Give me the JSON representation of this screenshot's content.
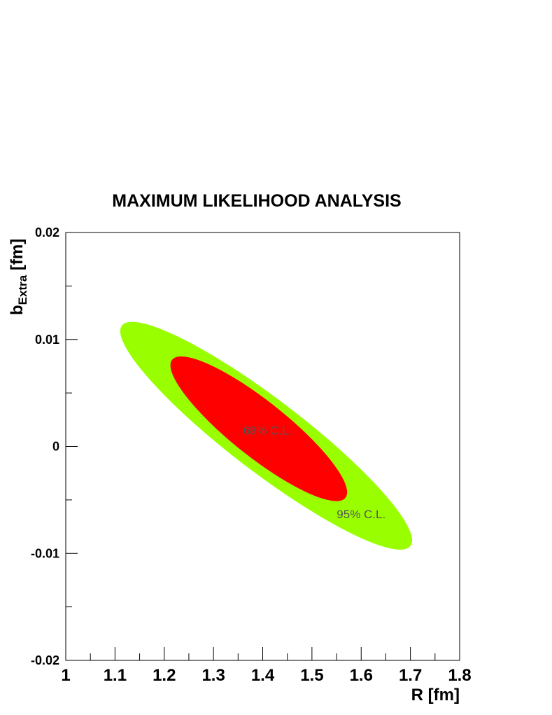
{
  "chart_data": {
    "type": "contour",
    "title": "MAXIMUM LIKELIHOOD ANALYSIS",
    "xlabel": "R  [fm]",
    "ylabel_main": "b",
    "ylabel_sub": "Extra",
    "ylabel_unit": " [fm]",
    "xlim": [
      1.0,
      1.8
    ],
    "ylim": [
      -0.02,
      0.02
    ],
    "x_major_ticks": [
      1.0,
      1.1,
      1.2,
      1.3,
      1.4,
      1.5,
      1.6,
      1.7,
      1.8
    ],
    "x_tick_labels": [
      "1",
      "1.1",
      "1.2",
      "1.3",
      "1.4",
      "1.5",
      "1.6",
      "1.7",
      "1.8"
    ],
    "x_minor_step": 0.05,
    "y_major_ticks": [
      -0.02,
      -0.01,
      0.0,
      0.01,
      0.02
    ],
    "y_tick_labels": [
      "-0.02",
      "-0.01",
      "0",
      "0.01",
      "0.02"
    ],
    "y_minor_step": 0.005,
    "grid": false,
    "regions": [
      {
        "name": "95% C.L.",
        "label": "95% C.L.",
        "color": "#99ff00",
        "endpoints": [
          [
            1.114,
            0.0113
          ],
          [
            1.7,
            -0.0093
          ]
        ],
        "half_width_frac": 0.2,
        "label_position": [
          1.6,
          -0.0067
        ]
      },
      {
        "name": "68% C.L.",
        "label": "68% C.L.",
        "color": "#ff0000",
        "endpoints": [
          [
            1.216,
            0.0081
          ],
          [
            1.568,
            -0.0048
          ]
        ],
        "half_width_frac": 0.25,
        "label_position": [
          1.41,
          0.0011
        ]
      }
    ],
    "colors": {
      "region_label": "#555555",
      "axis": "#000000"
    }
  }
}
